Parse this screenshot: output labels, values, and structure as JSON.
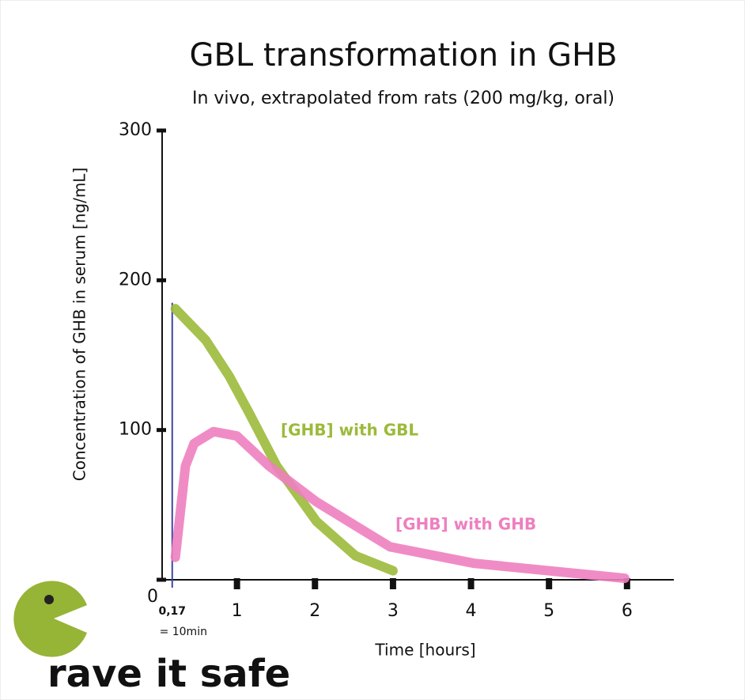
{
  "chart_data": {
    "type": "line",
    "title": "GBL transformation in GHB",
    "subtitle": "In vivo, extrapolated from rats (200 mg/kg, oral)",
    "y_label": "Concentration of GHB in serum [ng/mL]",
    "x_label": "Time [hours]",
    "xlim": [
      0,
      6.6
    ],
    "ylim": [
      0,
      300
    ],
    "xticks": [
      1,
      2,
      3,
      4,
      5,
      6
    ],
    "yticks": [
      0,
      100,
      200,
      300
    ],
    "marker_line": {
      "x": 0.17,
      "label": "0,17",
      "note": "= 10min",
      "color": "#3c46a8"
    },
    "series": [
      {
        "name": "[GHB] with GBL",
        "color": "#9cba3a",
        "x": [
          0.21,
          0.6,
          0.9,
          1.15,
          1.51,
          2.02,
          2.52,
          3.0
        ],
        "values": [
          181,
          160,
          136,
          112,
          76,
          39,
          16,
          6
        ]
      },
      {
        "name": "[GHB] with GHB",
        "color": "#ee7fbf",
        "x": [
          0.21,
          0.34,
          0.45,
          0.7,
          1.0,
          1.41,
          2.02,
          2.52,
          2.96,
          4.04,
          5.97
        ],
        "values": [
          15,
          76,
          91,
          99,
          96,
          76,
          52,
          36,
          22,
          11,
          1
        ]
      }
    ]
  },
  "brand": "rave it safe"
}
